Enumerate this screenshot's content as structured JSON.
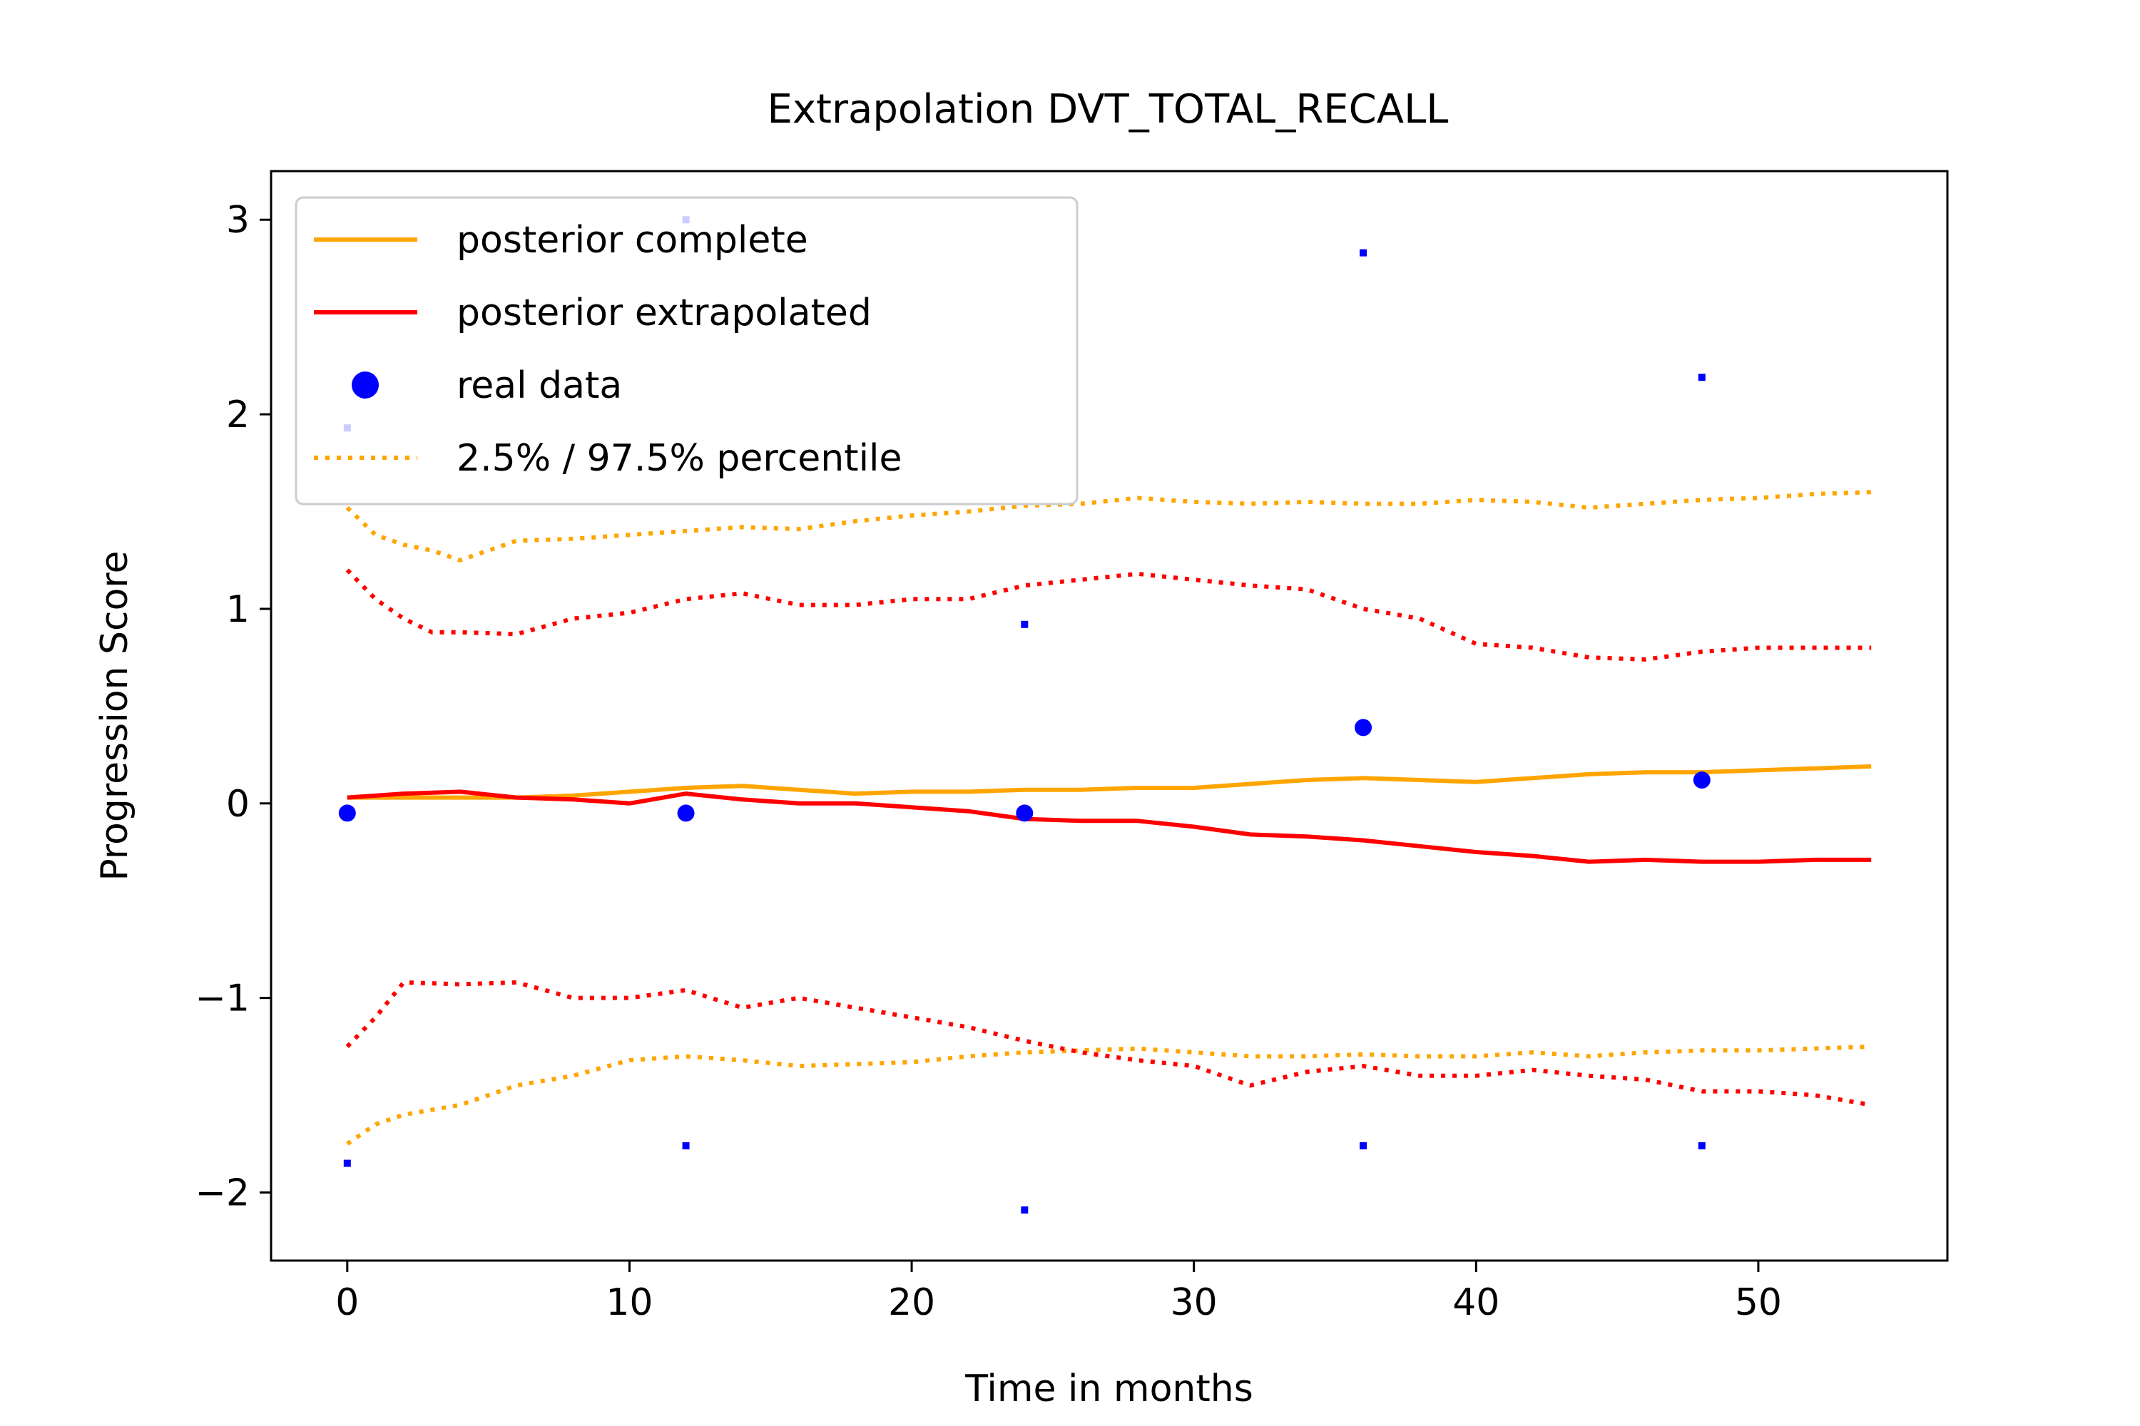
{
  "chart_data": {
    "type": "line",
    "title": "Extrapolation DVT_TOTAL_RECALL",
    "xlabel": "Time in months",
    "ylabel": "Progression Score",
    "xlim": [
      -2.7,
      56.7
    ],
    "ylim": [
      -2.35,
      3.25
    ],
    "x_ticks": [
      0,
      10,
      20,
      30,
      40,
      50
    ],
    "x_tick_labels": [
      "0",
      "10",
      "20",
      "30",
      "40",
      "50"
    ],
    "y_ticks": [
      -2,
      -1,
      0,
      1,
      2,
      3
    ],
    "y_tick_labels": [
      "−2",
      "−1",
      "0",
      "1",
      "2",
      "3"
    ],
    "grid": false,
    "legend_position": "top-left",
    "legend": [
      {
        "label": "posterior complete",
        "style": "solid-line",
        "color": "#ffa500"
      },
      {
        "label": "posterior extrapolated",
        "style": "solid-line",
        "color": "#ff0000"
      },
      {
        "label": "real data",
        "style": "marker",
        "color": "#0000ff"
      },
      {
        "label": "2.5% / 97.5% percentile",
        "style": "dotted-line",
        "color": "#ffa500"
      }
    ],
    "series": [
      {
        "name": "posterior complete",
        "color": "#ffa500",
        "dash": "solid",
        "x": [
          0,
          2,
          4,
          6,
          8,
          10,
          12,
          14,
          16,
          18,
          20,
          22,
          24,
          26,
          28,
          30,
          32,
          34,
          36,
          38,
          40,
          42,
          44,
          46,
          48,
          50,
          52,
          54
        ],
        "y": [
          0.03,
          0.03,
          0.03,
          0.03,
          0.04,
          0.06,
          0.08,
          0.09,
          0.07,
          0.05,
          0.06,
          0.06,
          0.07,
          0.07,
          0.08,
          0.08,
          0.1,
          0.12,
          0.13,
          0.12,
          0.11,
          0.13,
          0.15,
          0.16,
          0.16,
          0.17,
          0.18,
          0.19
        ]
      },
      {
        "name": "posterior extrapolated",
        "color": "#ff0000",
        "dash": "solid",
        "x": [
          0,
          2,
          4,
          6,
          8,
          10,
          12,
          14,
          16,
          18,
          20,
          22,
          24,
          26,
          28,
          30,
          32,
          34,
          36,
          38,
          40,
          42,
          44,
          46,
          48,
          50,
          52,
          54
        ],
        "y": [
          0.03,
          0.05,
          0.06,
          0.03,
          0.02,
          0.0,
          0.05,
          0.02,
          0.0,
          0.0,
          -0.02,
          -0.04,
          -0.08,
          -0.09,
          -0.09,
          -0.12,
          -0.16,
          -0.17,
          -0.19,
          -0.22,
          -0.25,
          -0.27,
          -0.3,
          -0.29,
          -0.3,
          -0.3,
          -0.29,
          -0.29
        ]
      },
      {
        "name": "complete 97.5% percentile",
        "color": "#ffa500",
        "dash": "dotted",
        "x": [
          0,
          1,
          2,
          3,
          4,
          5,
          6,
          8,
          10,
          12,
          14,
          16,
          18,
          20,
          22,
          24,
          26,
          28,
          30,
          32,
          34,
          36,
          38,
          40,
          42,
          44,
          46,
          48,
          50,
          52,
          54
        ],
        "y": [
          1.52,
          1.38,
          1.33,
          1.3,
          1.25,
          1.3,
          1.35,
          1.36,
          1.38,
          1.4,
          1.42,
          1.41,
          1.45,
          1.48,
          1.5,
          1.53,
          1.54,
          1.57,
          1.55,
          1.54,
          1.55,
          1.54,
          1.54,
          1.56,
          1.55,
          1.52,
          1.54,
          1.56,
          1.57,
          1.59,
          1.6
        ]
      },
      {
        "name": "complete 2.5% percentile",
        "color": "#ffa500",
        "dash": "dotted",
        "x": [
          0,
          1,
          2,
          4,
          6,
          8,
          10,
          12,
          14,
          16,
          18,
          20,
          22,
          24,
          26,
          28,
          30,
          32,
          34,
          36,
          38,
          40,
          42,
          44,
          46,
          48,
          50,
          52,
          54
        ],
        "y": [
          -1.75,
          -1.65,
          -1.6,
          -1.55,
          -1.45,
          -1.4,
          -1.32,
          -1.3,
          -1.32,
          -1.35,
          -1.34,
          -1.33,
          -1.3,
          -1.28,
          -1.27,
          -1.26,
          -1.28,
          -1.3,
          -1.3,
          -1.29,
          -1.3,
          -1.3,
          -1.28,
          -1.3,
          -1.28,
          -1.27,
          -1.27,
          -1.26,
          -1.25
        ]
      },
      {
        "name": "extrapolated 97.5% percentile",
        "color": "#ff0000",
        "dash": "dotted",
        "x": [
          0,
          1,
          2,
          3,
          4,
          6,
          8,
          10,
          12,
          14,
          16,
          18,
          20,
          22,
          24,
          26,
          28,
          30,
          32,
          34,
          36,
          38,
          40,
          42,
          44,
          46,
          48,
          50,
          52,
          54
        ],
        "y": [
          1.2,
          1.05,
          0.95,
          0.88,
          0.88,
          0.87,
          0.95,
          0.98,
          1.05,
          1.08,
          1.02,
          1.02,
          1.05,
          1.05,
          1.12,
          1.15,
          1.18,
          1.15,
          1.12,
          1.1,
          1.0,
          0.95,
          0.82,
          0.8,
          0.75,
          0.74,
          0.78,
          0.8,
          0.8,
          0.8
        ]
      },
      {
        "name": "extrapolated 2.5% percentile",
        "color": "#ff0000",
        "dash": "dotted",
        "x": [
          0,
          1,
          2,
          4,
          6,
          8,
          10,
          12,
          14,
          16,
          18,
          20,
          22,
          24,
          26,
          28,
          30,
          32,
          34,
          36,
          38,
          40,
          42,
          44,
          46,
          48,
          50,
          52,
          54
        ],
        "y": [
          -1.25,
          -1.1,
          -0.92,
          -0.93,
          -0.92,
          -1.0,
          -1.0,
          -0.96,
          -1.05,
          -1.0,
          -1.05,
          -1.1,
          -1.15,
          -1.22,
          -1.28,
          -1.32,
          -1.35,
          -1.45,
          -1.38,
          -1.35,
          -1.4,
          -1.4,
          -1.37,
          -1.4,
          -1.42,
          -1.48,
          -1.48,
          -1.5,
          -1.55
        ]
      }
    ],
    "real_data": {
      "color": "#0000ff",
      "x": [
        0,
        12,
        24,
        36,
        48
      ],
      "y": [
        -0.05,
        -0.05,
        -0.05,
        0.39,
        0.12
      ]
    },
    "percentile_markers": {
      "color": "#0000ff",
      "x": [
        0,
        0,
        12,
        12,
        24,
        24,
        36,
        36,
        48,
        48
      ],
      "y": [
        1.93,
        -1.85,
        3.0,
        -1.76,
        0.92,
        -2.09,
        2.83,
        -1.76,
        2.19,
        -1.76
      ]
    }
  }
}
